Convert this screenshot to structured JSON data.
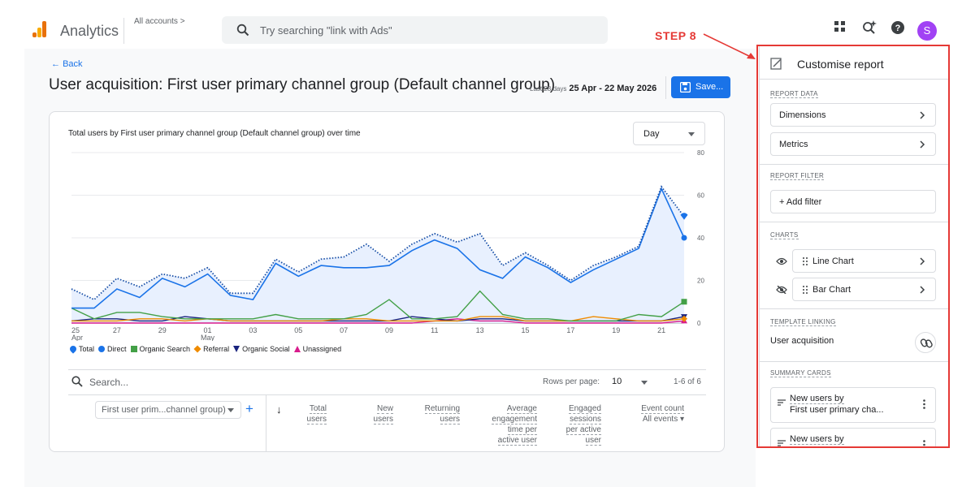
{
  "header": {
    "app_name": "Analytics",
    "accounts_label": "All accounts",
    "search_placeholder": "Try searching \"link with Ads\"",
    "avatar_letter": "S"
  },
  "report": {
    "back_label": "Back",
    "title": "User acquisition: First user primary channel group (Default channel group)",
    "date_prefix": "Last 28 days",
    "date_range": "25 Apr - 22 May 2026",
    "save_label": "Save..."
  },
  "chart_card": {
    "title": "Total users by First user primary channel group (Default channel group) over time",
    "granularity": "Day"
  },
  "chart_data": {
    "type": "line",
    "x": [
      "25 Apr",
      "26",
      "27",
      "28",
      "29",
      "30",
      "01 May",
      "02",
      "03",
      "04",
      "05",
      "06",
      "07",
      "08",
      "09",
      "10",
      "11",
      "12",
      "13",
      "14",
      "15",
      "16",
      "17",
      "18",
      "19",
      "20",
      "21",
      "22"
    ],
    "x_tick_labels": [
      [
        "25",
        "Apr"
      ],
      [
        "27",
        ""
      ],
      [
        "29",
        ""
      ],
      [
        "01",
        "May"
      ],
      [
        "03",
        ""
      ],
      [
        "05",
        ""
      ],
      [
        "07",
        ""
      ],
      [
        "09",
        ""
      ],
      [
        "11",
        ""
      ],
      [
        "13",
        ""
      ],
      [
        "15",
        ""
      ],
      [
        "17",
        ""
      ],
      [
        "19",
        ""
      ],
      [
        "21",
        ""
      ]
    ],
    "y_ticks": [
      0,
      20,
      40,
      60,
      80
    ],
    "ylim": [
      0,
      80
    ],
    "grid": true,
    "legend_position": "bottom-left",
    "series": [
      {
        "name": "Total",
        "color": "#1a73e8",
        "style": "dotted",
        "fill": "#e8f0fe",
        "marker": "pin",
        "values": [
          16,
          11,
          21,
          17,
          23,
          21,
          26,
          14,
          14,
          30,
          24,
          30,
          31,
          37,
          29,
          37,
          42,
          38,
          42,
          27,
          33,
          27,
          20,
          27,
          31,
          36,
          64,
          50
        ]
      },
      {
        "name": "Direct",
        "color": "#1a73e8",
        "style": "solid",
        "marker": "circle",
        "values": [
          7,
          7,
          16,
          12,
          21,
          17,
          23,
          13,
          11,
          28,
          22,
          27,
          26,
          26,
          27,
          34,
          39,
          35,
          25,
          21,
          31,
          26,
          19,
          25,
          30,
          35,
          63,
          40
        ]
      },
      {
        "name": "Organic Search",
        "color": "#43a047",
        "style": "solid",
        "marker": "square",
        "values": [
          7,
          2,
          5,
          5,
          3,
          2,
          2,
          2,
          2,
          4,
          2,
          2,
          2,
          4,
          11,
          2,
          2,
          3,
          15,
          4,
          2,
          2,
          1,
          1,
          1,
          4,
          3,
          10
        ]
      },
      {
        "name": "Referral",
        "color": "#ef8b00",
        "style": "solid",
        "marker": "diamond",
        "values": [
          1,
          1,
          1,
          2,
          2,
          1,
          2,
          1,
          1,
          1,
          1,
          1,
          2,
          2,
          1,
          1,
          1,
          1,
          3,
          3,
          1,
          1,
          1,
          3,
          2,
          1,
          1,
          2
        ]
      },
      {
        "name": "Organic Social",
        "color": "#1a237e",
        "style": "solid",
        "marker": "triangle-down",
        "values": [
          1,
          2,
          2,
          1,
          1,
          3,
          2,
          1,
          1,
          1,
          1,
          1,
          1,
          1,
          1,
          3,
          2,
          1,
          2,
          2,
          1,
          1,
          1,
          1,
          1,
          1,
          1,
          3
        ]
      },
      {
        "name": "Unassigned",
        "color": "#d81b8c",
        "style": "solid",
        "marker": "triangle-up",
        "values": [
          0,
          0,
          0,
          0,
          0,
          0,
          0,
          0,
          0,
          0,
          0,
          0,
          0,
          0,
          0,
          0,
          1,
          2,
          1,
          1,
          0,
          0,
          0,
          0,
          0,
          0,
          0,
          1
        ]
      }
    ]
  },
  "table": {
    "search_placeholder": "Search...",
    "rows_per_page_label": "Rows per page:",
    "rows_per_page": "10",
    "page_count": "1-6 of 6",
    "dimension_label": "First user prim...channel group)",
    "add_label": "+",
    "sort_arrow": "↓",
    "columns": [
      {
        "lines": [
          "Total",
          "users"
        ]
      },
      {
        "lines": [
          "New",
          "users"
        ]
      },
      {
        "lines": [
          "Returning",
          "users"
        ]
      },
      {
        "lines": [
          "Average",
          "engagement",
          "time per",
          "active user"
        ]
      },
      {
        "lines": [
          "Engaged",
          "sessions",
          "per active",
          "user"
        ]
      },
      {
        "lines": [
          "Event count"
        ],
        "sub": "All events"
      }
    ]
  },
  "panel": {
    "title": "Customise report",
    "report_data_heading": "REPORT DATA",
    "dimensions_label": "Dimensions",
    "metrics_label": "Metrics",
    "report_filter_heading": "REPORT FILTER",
    "add_filter_label": "+ Add filter",
    "charts_heading": "CHARTS",
    "line_chart_label": "Line Chart",
    "bar_chart_label": "Bar Chart",
    "template_heading": "TEMPLATE LINKING",
    "template_value": "User acquisition",
    "summary_heading": "SUMMARY CARDS",
    "summary_cards": [
      {
        "line1": "New users by",
        "line2": "First user primary cha..."
      },
      {
        "line1": "New users by",
        "line2": ""
      }
    ]
  },
  "annotation": {
    "step_label": "STEP 8",
    "color": "#e53935"
  }
}
